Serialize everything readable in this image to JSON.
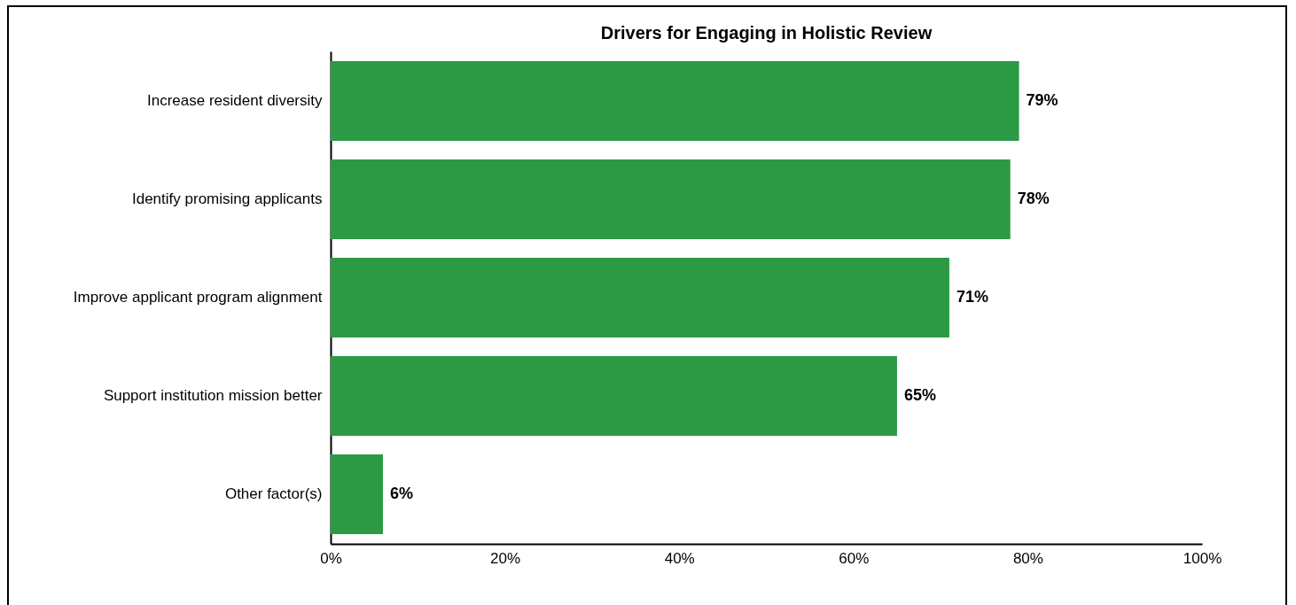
{
  "chart_data": {
    "type": "bar",
    "orientation": "horizontal",
    "title": "Drivers for Engaging in Holistic Review",
    "categories": [
      "Increase resident diversity",
      "Identify promising applicants",
      "Improve applicant program alignment",
      "Support institution mission better",
      "Other factor(s)"
    ],
    "values": [
      79,
      78,
      71,
      65,
      6
    ],
    "value_labels": [
      "79%",
      "78%",
      "71%",
      "65%",
      "6%"
    ],
    "color": "#2c9a45",
    "xlim": [
      0,
      100
    ],
    "xticks": [
      {
        "value": 0,
        "label": "0%"
      },
      {
        "value": 20,
        "label": "20%"
      },
      {
        "value": 40,
        "label": "40%"
      },
      {
        "value": 60,
        "label": "60%"
      },
      {
        "value": 80,
        "label": "80%"
      },
      {
        "value": 100,
        "label": "100%"
      }
    ],
    "grid": false
  }
}
